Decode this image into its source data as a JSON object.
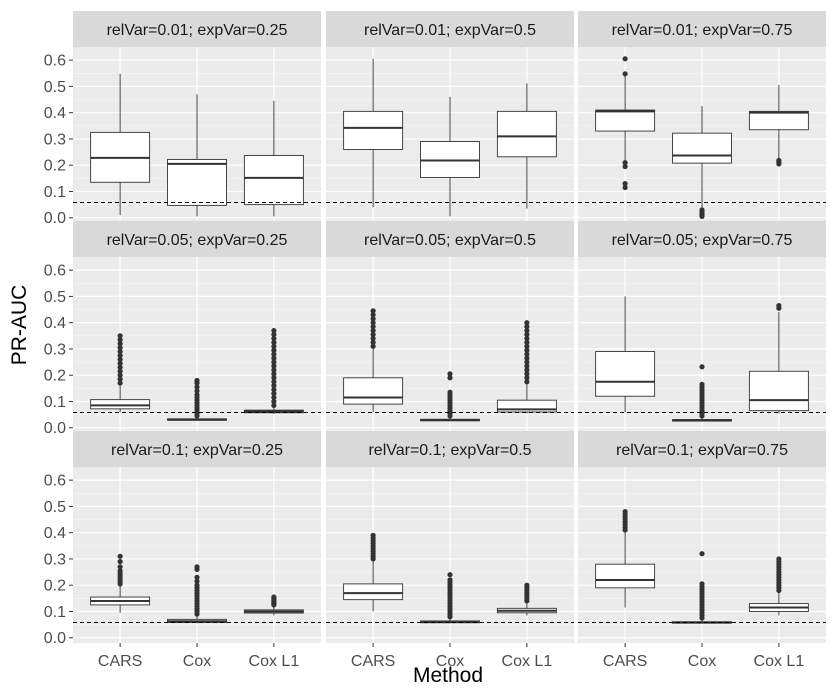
{
  "chart_data": {
    "type": "boxplot",
    "ylabel": "PR-AUC",
    "xlabel": "Method",
    "categories": [
      "CARS",
      "Cox",
      "Cox L1"
    ],
    "ylim": [
      -0.02,
      0.65
    ],
    "yticks": [
      0.0,
      0.1,
      0.2,
      0.3,
      0.4,
      0.5,
      0.6
    ],
    "ytick_labels": [
      "0.0",
      "0.1",
      "0.2",
      "0.3",
      "0.4",
      "0.5",
      "0.6"
    ],
    "grid": true,
    "colors": {
      "panel_bg": "#ebebeb",
      "strip_bg": "#d9d9d9",
      "grid_major": "#ffffff",
      "grid_minor": "#f5f5f5",
      "box_fill": "#ffffff",
      "ink": "#333333",
      "outlier": "#333333",
      "reference": "#000000"
    },
    "panels": [
      {
        "title": "relVar=0.01; expVar=0.25",
        "reference": 0.058,
        "boxes": [
          {
            "category": "CARS",
            "min": 0.01,
            "q1": 0.135,
            "median": 0.228,
            "q3": 0.325,
            "max": 0.548,
            "outliers": []
          },
          {
            "category": "Cox",
            "min": 0.005,
            "q1": 0.047,
            "median": 0.205,
            "q3": 0.222,
            "max": 0.47,
            "outliers": []
          },
          {
            "category": "Cox L1",
            "min": 0.005,
            "q1": 0.05,
            "median": 0.152,
            "q3": 0.237,
            "max": 0.445,
            "outliers": []
          }
        ]
      },
      {
        "title": "relVar=0.01; expVar=0.5",
        "reference": 0.058,
        "boxes": [
          {
            "category": "CARS",
            "min": 0.04,
            "q1": 0.26,
            "median": 0.342,
            "q3": 0.405,
            "max": 0.605,
            "outliers": []
          },
          {
            "category": "Cox",
            "min": 0.005,
            "q1": 0.153,
            "median": 0.218,
            "q3": 0.29,
            "max": 0.46,
            "outliers": []
          },
          {
            "category": "Cox L1",
            "min": 0.035,
            "q1": 0.232,
            "median": 0.31,
            "q3": 0.405,
            "max": 0.512,
            "outliers": []
          }
        ]
      },
      {
        "title": "relVar=0.01; expVar=0.75",
        "reference": 0.058,
        "boxes": [
          {
            "category": "CARS",
            "min": 0.22,
            "q1": 0.33,
            "median": 0.405,
            "q3": 0.41,
            "max": 0.55,
            "outliers": [
              0.605,
              0.548,
              0.21,
              0.195,
              0.13,
              0.115
            ]
          },
          {
            "category": "Cox",
            "min": 0.04,
            "q1": 0.208,
            "median": 0.237,
            "q3": 0.322,
            "max": 0.425,
            "outliers": [
              0.03,
              0.022,
              0.015,
              0.01,
              0.005
            ]
          },
          {
            "category": "Cox L1",
            "min": 0.225,
            "q1": 0.335,
            "median": 0.4,
            "q3": 0.405,
            "max": 0.505,
            "outliers": [
              0.218,
              0.212,
              0.205
            ]
          }
        ]
      },
      {
        "title": "relVar=0.05; expVar=0.25",
        "reference": 0.058,
        "boxes": [
          {
            "category": "CARS",
            "min": 0.06,
            "q1": 0.072,
            "median": 0.085,
            "q3": 0.107,
            "max": 0.16,
            "outliers": [
              0.17,
              0.185,
              0.2,
              0.215,
              0.23,
              0.245,
              0.26,
              0.275,
              0.29,
              0.305,
              0.32,
              0.335,
              0.35
            ]
          },
          {
            "category": "Cox",
            "min": 0.027,
            "q1": 0.029,
            "median": 0.031,
            "q3": 0.034,
            "max": 0.038,
            "outliers": [
              0.045,
              0.055,
              0.065,
              0.075,
              0.085,
              0.095,
              0.105,
              0.115,
              0.125,
              0.14,
              0.155,
              0.17,
              0.18
            ]
          },
          {
            "category": "Cox L1",
            "min": 0.052,
            "q1": 0.057,
            "median": 0.062,
            "q3": 0.067,
            "max": 0.075,
            "outliers": [
              0.085,
              0.1,
              0.115,
              0.13,
              0.145,
              0.16,
              0.175,
              0.19,
              0.205,
              0.22,
              0.235,
              0.25,
              0.265,
              0.28,
              0.295,
              0.31,
              0.325,
              0.34,
              0.355,
              0.37
            ]
          }
        ]
      },
      {
        "title": "relVar=0.05; expVar=0.5",
        "reference": 0.058,
        "boxes": [
          {
            "category": "CARS",
            "min": 0.06,
            "q1": 0.09,
            "median": 0.115,
            "q3": 0.19,
            "max": 0.3,
            "outliers": [
              0.31,
              0.325,
              0.34,
              0.355,
              0.37,
              0.385,
              0.4,
              0.415,
              0.43,
              0.445
            ]
          },
          {
            "category": "Cox",
            "min": 0.027,
            "q1": 0.028,
            "median": 0.03,
            "q3": 0.032,
            "max": 0.036,
            "outliers": [
              0.045,
              0.055,
              0.065,
              0.075,
              0.085,
              0.095,
              0.105,
              0.115,
              0.125,
              0.135,
              0.19,
              0.205
            ]
          },
          {
            "category": "Cox L1",
            "min": 0.055,
            "q1": 0.06,
            "median": 0.07,
            "q3": 0.105,
            "max": 0.165,
            "outliers": [
              0.175,
              0.19,
              0.205,
              0.22,
              0.235,
              0.25,
              0.265,
              0.28,
              0.295,
              0.31,
              0.325,
              0.34,
              0.355,
              0.37,
              0.385,
              0.4
            ]
          }
        ]
      },
      {
        "title": "relVar=0.05; expVar=0.75",
        "reference": 0.058,
        "boxes": [
          {
            "category": "CARS",
            "min": 0.06,
            "q1": 0.12,
            "median": 0.175,
            "q3": 0.29,
            "max": 0.5,
            "outliers": []
          },
          {
            "category": "Cox",
            "min": 0.026,
            "q1": 0.027,
            "median": 0.029,
            "q3": 0.031,
            "max": 0.036,
            "outliers": [
              0.045,
              0.055,
              0.065,
              0.075,
              0.085,
              0.095,
              0.105,
              0.115,
              0.125,
              0.135,
              0.145,
              0.155,
              0.165,
              0.232
            ]
          },
          {
            "category": "Cox L1",
            "min": 0.055,
            "q1": 0.065,
            "median": 0.105,
            "q3": 0.215,
            "max": 0.44,
            "outliers": [
              0.455,
              0.465
            ]
          }
        ]
      },
      {
        "title": "relVar=0.1; expVar=0.25",
        "reference": 0.058,
        "boxes": [
          {
            "category": "CARS",
            "min": 0.095,
            "q1": 0.125,
            "median": 0.14,
            "q3": 0.155,
            "max": 0.195,
            "outliers": [
              0.205,
              0.215,
              0.225,
              0.235,
              0.245,
              0.255,
              0.27,
              0.29,
              0.31
            ]
          },
          {
            "category": "Cox",
            "min": 0.055,
            "q1": 0.058,
            "median": 0.063,
            "q3": 0.07,
            "max": 0.08,
            "outliers": [
              0.09,
              0.1,
              0.11,
              0.12,
              0.13,
              0.14,
              0.15,
              0.16,
              0.17,
              0.18,
              0.19,
              0.2,
              0.215,
              0.23,
              0.26,
              0.27
            ]
          },
          {
            "category": "Cox L1",
            "min": 0.085,
            "q1": 0.094,
            "median": 0.1,
            "q3": 0.106,
            "max": 0.118,
            "outliers": [
              0.125,
              0.13,
              0.135,
              0.14,
              0.145,
              0.15,
              0.155
            ]
          }
        ]
      },
      {
        "title": "relVar=0.1; expVar=0.5",
        "reference": 0.058,
        "boxes": [
          {
            "category": "CARS",
            "min": 0.1,
            "q1": 0.145,
            "median": 0.17,
            "q3": 0.205,
            "max": 0.29,
            "outliers": [
              0.3,
              0.31,
              0.32,
              0.33,
              0.34,
              0.35,
              0.36,
              0.37,
              0.38,
              0.39
            ]
          },
          {
            "category": "Cox",
            "min": 0.055,
            "q1": 0.057,
            "median": 0.06,
            "q3": 0.064,
            "max": 0.072,
            "outliers": [
              0.08,
              0.09,
              0.1,
              0.11,
              0.12,
              0.13,
              0.14,
              0.15,
              0.16,
              0.17,
              0.18,
              0.19,
              0.2,
              0.21,
              0.22,
              0.24
            ]
          },
          {
            "category": "Cox L1",
            "min": 0.085,
            "q1": 0.095,
            "median": 0.103,
            "q3": 0.112,
            "max": 0.13,
            "outliers": [
              0.14,
              0.15,
              0.16,
              0.17,
              0.18,
              0.19,
              0.2
            ]
          }
        ]
      },
      {
        "title": "relVar=0.1; expVar=0.75",
        "reference": 0.058,
        "boxes": [
          {
            "category": "CARS",
            "min": 0.115,
            "q1": 0.19,
            "median": 0.22,
            "q3": 0.28,
            "max": 0.4,
            "outliers": [
              0.41,
              0.42,
              0.43,
              0.44,
              0.45,
              0.46,
              0.47,
              0.48
            ]
          },
          {
            "category": "Cox",
            "min": 0.054,
            "q1": 0.056,
            "median": 0.058,
            "q3": 0.061,
            "max": 0.066,
            "outliers": [
              0.075,
              0.085,
              0.095,
              0.105,
              0.115,
              0.125,
              0.135,
              0.145,
              0.155,
              0.165,
              0.175,
              0.185,
              0.195,
              0.205,
              0.32
            ]
          },
          {
            "category": "Cox L1",
            "min": 0.085,
            "q1": 0.1,
            "median": 0.115,
            "q3": 0.13,
            "max": 0.17,
            "outliers": [
              0.18,
              0.19,
              0.2,
              0.21,
              0.22,
              0.23,
              0.24,
              0.25,
              0.26,
              0.27,
              0.28,
              0.29,
              0.3
            ]
          }
        ]
      }
    ]
  }
}
